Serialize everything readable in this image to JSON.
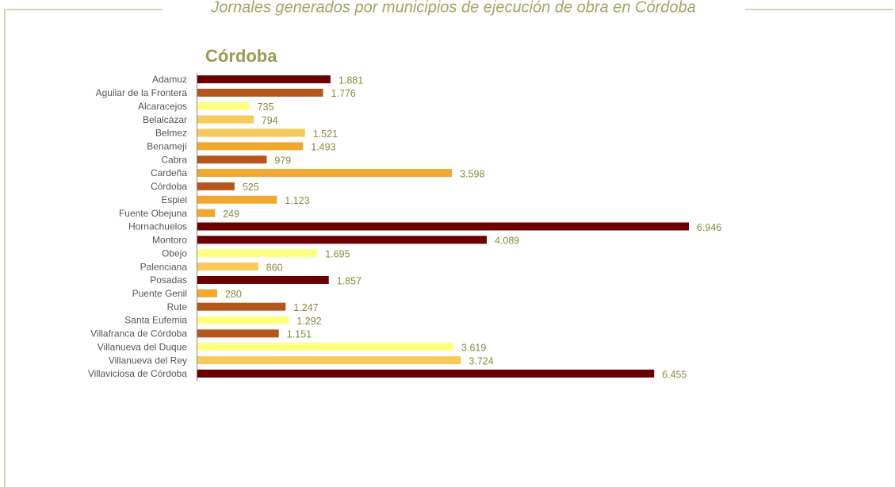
{
  "chart_data": {
    "type": "bar",
    "orientation": "horizontal",
    "title": "Jornales generados por municipios de ejecución de obra en Córdoba",
    "subtitle": "Córdoba",
    "categories": [
      "Adamuz",
      "Aguilar de la Frontera",
      "Alcaracejos",
      "Belalcázar",
      "Belmez",
      "Benamejí",
      "Cabra",
      "Cardeña",
      "Córdoba",
      "Espiel",
      "Fuente Obejuna",
      "Hornachuelos",
      "Montoro",
      "Obejo",
      "Palenciana",
      "Posadas",
      "Puente Genil",
      "Rute",
      "Santa Eufemia",
      "Villafranca de Córdoba",
      "Villanueva del Duque",
      "Villanueva del Rey",
      "Villaviciosa de Córdoba"
    ],
    "values": [
      1881,
      1776,
      735,
      794,
      1521,
      1493,
      979,
      3598,
      525,
      1123,
      249,
      6946,
      4089,
      1695,
      860,
      1857,
      280,
      1247,
      1292,
      1151,
      3619,
      3724,
      6455
    ],
    "value_labels": [
      "1.881",
      "1.776",
      "735",
      "794",
      "1.521",
      "1.493",
      "979",
      "3.598",
      "525",
      "1.123",
      "249",
      "6.946",
      "4.089",
      "1.695",
      "860",
      "1.857",
      "280",
      "1.247",
      "1.292",
      "1.151",
      "3.619",
      "3.724",
      "6.455"
    ],
    "colors": [
      "#6b0000",
      "#b5561c",
      "#ffff80",
      "#f9c95a",
      "#f9c95a",
      "#f0a830",
      "#b5561c",
      "#f0a830",
      "#b5561c",
      "#f0a830",
      "#f0a830",
      "#6b0000",
      "#6b0000",
      "#ffff80",
      "#f9c95a",
      "#6b0000",
      "#f0a830",
      "#b5561c",
      "#ffff80",
      "#b5561c",
      "#ffff80",
      "#f9c95a",
      "#6b0000"
    ]
  }
}
